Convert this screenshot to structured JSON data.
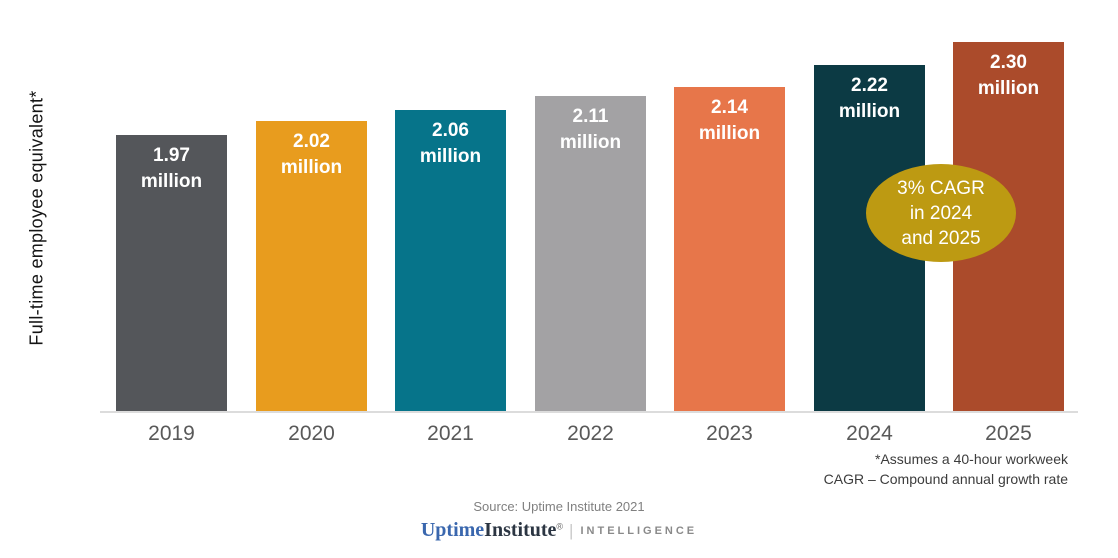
{
  "chart_data": {
    "type": "bar",
    "categories": [
      "2019",
      "2020",
      "2021",
      "2022",
      "2023",
      "2024",
      "2025"
    ],
    "values": [
      1.97,
      2.02,
      2.06,
      2.11,
      2.14,
      2.22,
      2.3
    ],
    "unit_label": "million",
    "bar_labels": [
      "1.97 million",
      "2.02 million",
      "2.06 million",
      "2.11 million",
      "2.14 million",
      "2.22 million",
      "2.30 million"
    ],
    "bar_colors": [
      "#54565a",
      "#e89c1e",
      "#06748a",
      "#a3a2a4",
      "#e7764a",
      "#0c3a44",
      "#ab4b2b"
    ],
    "ylabel": "Full-time employee equivalent*",
    "xlabel": "",
    "ylim": [
      0.99,
      2.3
    ],
    "grid": "off",
    "legend": "none",
    "annotation": {
      "lines": [
        "3% CAGR",
        "in 2024",
        "and 2025"
      ],
      "color": "#bd9a12",
      "text_color": "#ffffff"
    }
  },
  "footnotes": {
    "line1": "*Assumes a 40-hour workweek",
    "line2": "CAGR – Compound annual growth rate"
  },
  "source": "Source: Uptime Institute 2021",
  "logo": {
    "uptime": "Uptime",
    "institute": "Institute",
    "reg": "®",
    "divider": "|",
    "intelligence": "INTELLIGENCE"
  },
  "colors": {
    "baseline": "#dcdcdc",
    "axis_tick_text": "#595959",
    "footnote_text": "#3c3c3c",
    "source_text": "#808080",
    "logo_uptime": "#3a67ae",
    "logo_institute": "#2b3542",
    "logo_intelligence": "#8a8a8a"
  }
}
